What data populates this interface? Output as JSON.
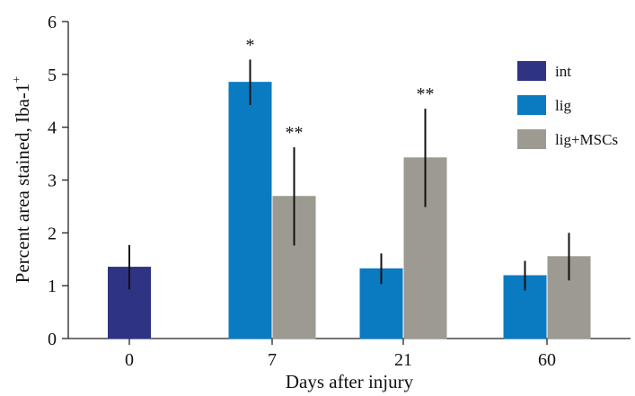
{
  "chart_data": {
    "type": "bar",
    "categories": [
      "0",
      "7",
      "21",
      "60"
    ],
    "xlabel": "Days after injury",
    "ylabel": "Percent area stained, Iba-1",
    "ylabel_superscript": "+",
    "ylim": [
      0,
      6
    ],
    "yticks": [
      "0",
      "1",
      "2",
      "3",
      "4",
      "5",
      "6"
    ],
    "grid": false,
    "legend_position": "top-right",
    "series": [
      {
        "name": "int",
        "color": "#2e3383",
        "values": [
          1.35,
          null,
          null,
          null
        ],
        "errors": [
          0.42,
          null,
          null,
          null
        ],
        "annotations": [
          "",
          "",
          "",
          ""
        ]
      },
      {
        "name": "lig",
        "color": "#0a7bc1",
        "values": [
          null,
          4.85,
          1.32,
          1.19
        ],
        "errors": [
          null,
          0.43,
          0.29,
          0.28
        ],
        "annotations": [
          "",
          "*",
          "",
          ""
        ]
      },
      {
        "name": "lig+MSCs",
        "color": "#9d9a91",
        "values": [
          null,
          2.69,
          3.42,
          1.55
        ],
        "errors": [
          null,
          0.93,
          0.93,
          0.45
        ],
        "annotations": [
          "",
          "**",
          "**",
          ""
        ]
      }
    ]
  }
}
